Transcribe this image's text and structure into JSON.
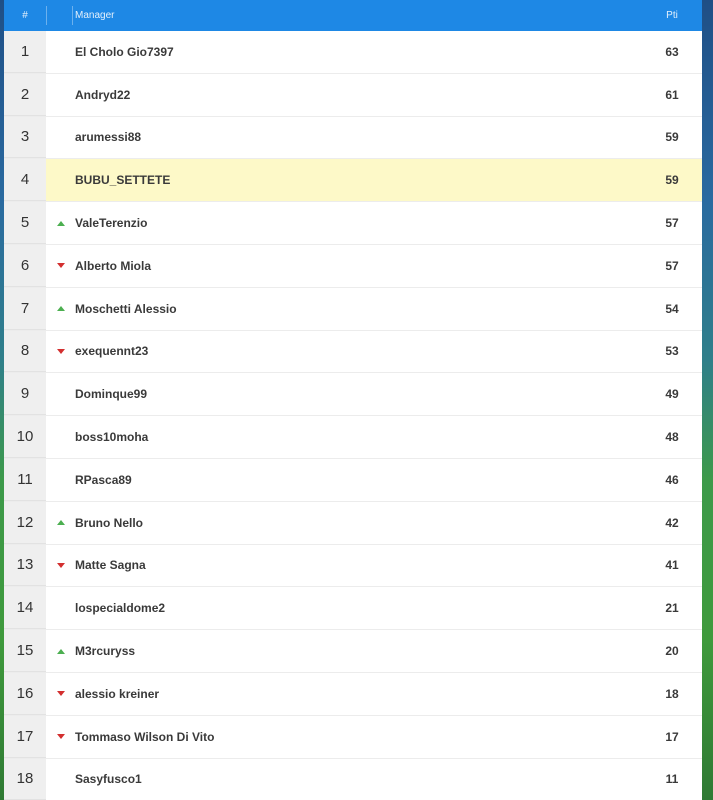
{
  "header": {
    "rank": "#",
    "manager": "Manager",
    "points": "Pti"
  },
  "colors": {
    "header_bg": "#1e88e5",
    "highlight": "#fdf9c8",
    "up": "#4caf50",
    "down": "#d32f2f"
  },
  "rows": [
    {
      "rank": "1",
      "trend": "none",
      "name": "El Cholo Gio7397",
      "points": "63",
      "highlight": false
    },
    {
      "rank": "2",
      "trend": "none",
      "name": "Andryd22",
      "points": "61",
      "highlight": false
    },
    {
      "rank": "3",
      "trend": "none",
      "name": "arumessi88",
      "points": "59",
      "highlight": false
    },
    {
      "rank": "4",
      "trend": "none",
      "name": "BUBU_SETTETE",
      "points": "59",
      "highlight": true
    },
    {
      "rank": "5",
      "trend": "up",
      "name": "ValeTerenzio",
      "points": "57",
      "highlight": false
    },
    {
      "rank": "6",
      "trend": "down",
      "name": "Alberto Miola",
      "points": "57",
      "highlight": false
    },
    {
      "rank": "7",
      "trend": "up",
      "name": "Moschetti Alessio",
      "points": "54",
      "highlight": false
    },
    {
      "rank": "8",
      "trend": "down",
      "name": "exequennt23",
      "points": "53",
      "highlight": false
    },
    {
      "rank": "9",
      "trend": "none",
      "name": "Dominque99",
      "points": "49",
      "highlight": false
    },
    {
      "rank": "10",
      "trend": "none",
      "name": "boss10moha",
      "points": "48",
      "highlight": false
    },
    {
      "rank": "11",
      "trend": "none",
      "name": "RPasca89",
      "points": "46",
      "highlight": false
    },
    {
      "rank": "12",
      "trend": "up",
      "name": "Bruno Nello",
      "points": "42",
      "highlight": false
    },
    {
      "rank": "13",
      "trend": "down",
      "name": "Matte Sagna",
      "points": "41",
      "highlight": false
    },
    {
      "rank": "14",
      "trend": "none",
      "name": "lospecialdome2",
      "points": "21",
      "highlight": false
    },
    {
      "rank": "15",
      "trend": "up",
      "name": "M3rcuryss",
      "points": "20",
      "highlight": false
    },
    {
      "rank": "16",
      "trend": "down",
      "name": "alessio kreiner",
      "points": "18",
      "highlight": false
    },
    {
      "rank": "17",
      "trend": "down",
      "name": "Tommaso Wilson Di Vito",
      "points": "17",
      "highlight": false
    },
    {
      "rank": "18",
      "trend": "none",
      "name": "Sasyfusco1",
      "points": "11",
      "highlight": false
    }
  ]
}
